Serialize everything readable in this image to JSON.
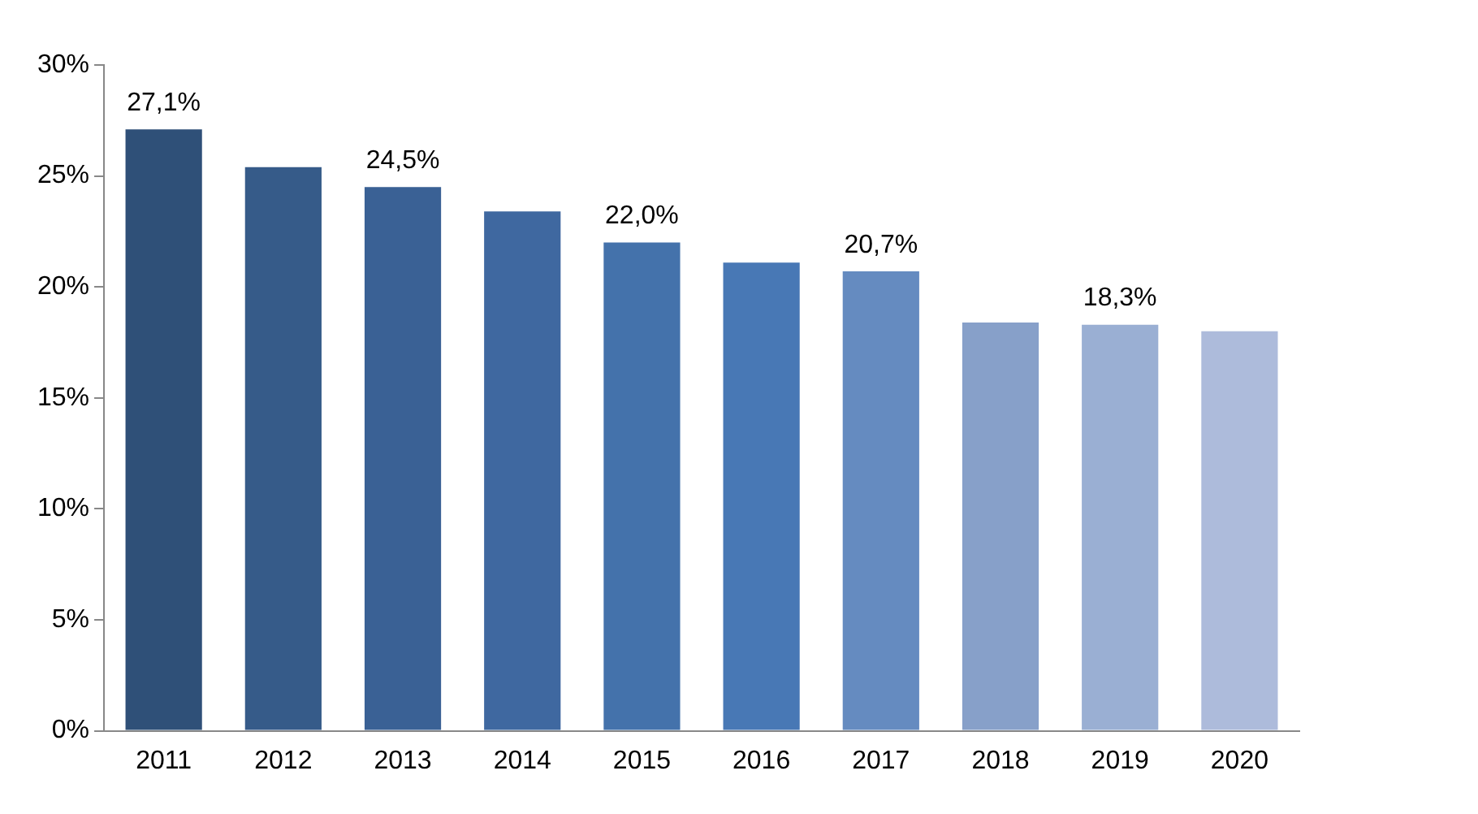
{
  "chart_data": {
    "type": "bar",
    "categories": [
      "2011",
      "2012",
      "2013",
      "2014",
      "2015",
      "2016",
      "2017",
      "2018",
      "2019",
      "2020"
    ],
    "values": [
      27.1,
      25.4,
      24.5,
      23.4,
      22.0,
      21.1,
      20.7,
      18.4,
      18.3,
      18.0
    ],
    "colors": [
      "#2f5078",
      "#365b89",
      "#3a6195",
      "#3f68a0",
      "#4472ab",
      "#4878b5",
      "#658bc0",
      "#87a0c9",
      "#9aafd3",
      "#adbbdb"
    ],
    "value_labels": [
      "27,1%",
      null,
      "24,5%",
      null,
      "22,0%",
      null,
      "20,7%",
      null,
      "18,3%",
      null
    ],
    "ylim": [
      0,
      30
    ],
    "yticks": [
      {
        "value": 0,
        "label": "0%"
      },
      {
        "value": 5,
        "label": "5%"
      },
      {
        "value": 10,
        "label": "10%"
      },
      {
        "value": 15,
        "label": "15%"
      },
      {
        "value": 20,
        "label": "20%"
      },
      {
        "value": 25,
        "label": "25%"
      },
      {
        "value": 30,
        "label": "30%"
      }
    ],
    "grid": false,
    "legend": false
  }
}
